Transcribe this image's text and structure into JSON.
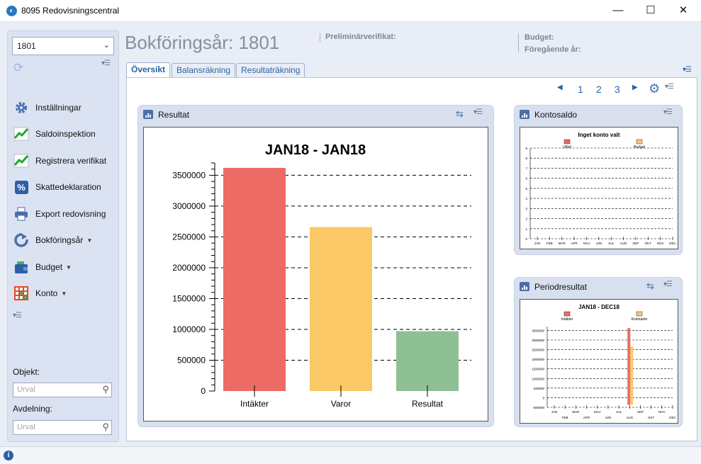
{
  "window": {
    "title": "8095 Redovisningscentral"
  },
  "sidebar": {
    "year_value": "1801",
    "items": [
      {
        "label": "Inställningar",
        "icon": "gear-icon"
      },
      {
        "label": "Saldoinspektion",
        "icon": "trend-chart-icon"
      },
      {
        "label": "Registrera verifikat",
        "icon": "trend-chart-icon"
      },
      {
        "label": "Skattedeklaration",
        "icon": "percent-icon"
      },
      {
        "label": "Export redovisning",
        "icon": "printer-icon"
      },
      {
        "label": "Bokföringsår",
        "icon": "cycle-icon"
      },
      {
        "label": "Budget",
        "icon": "wallet-icon"
      },
      {
        "label": "Konto",
        "icon": "grid-icon"
      }
    ],
    "objekt_label": "Objekt:",
    "objekt_placeholder": "Urval",
    "avdelning_label": "Avdelning:",
    "avdelning_placeholder": "Urval"
  },
  "header": {
    "title": "Bokföringsår: 1801",
    "preliminary_label": "Preliminärverifikat:",
    "budget_label": "Budget:",
    "previous_year_label": "Föregående år:"
  },
  "tabs": [
    {
      "label": "Översikt",
      "active": true
    },
    {
      "label": "Balansräkning",
      "active": false
    },
    {
      "label": "Resultaträkning",
      "active": false
    }
  ],
  "pager": {
    "pages": [
      "1",
      "2",
      "3"
    ]
  },
  "widgets": {
    "resultat": {
      "title": "Resultat"
    },
    "kontosaldo": {
      "title": "Kontosaldo"
    },
    "periodresultat": {
      "title": "Periodresultat"
    }
  },
  "chart_data": [
    {
      "type": "bar",
      "title": "JAN18 - JAN18",
      "categories": [
        "Intäkter",
        "Varor",
        "Resultat"
      ],
      "values": [
        3620000,
        2660000,
        970000
      ],
      "colors": [
        "#ec6b65",
        "#fbc868",
        "#8fbf95"
      ],
      "ylim": [
        0,
        3700000
      ],
      "yticks": [
        "0",
        "500000",
        "1000000",
        "1500000",
        "2000000",
        "2500000",
        "3000000",
        "3500000"
      ],
      "grid": true
    },
    {
      "type": "bar",
      "title": "Inget konto valt",
      "legend": [
        "Utfall",
        "Budget"
      ],
      "legend_colors": [
        "#ec6b65",
        "#fbc868"
      ],
      "yticks": [
        "0",
        "1",
        "2",
        "3",
        "4",
        "5",
        "6",
        "7",
        "8",
        "9"
      ],
      "categories": [
        "JAN",
        "FEB",
        "MAR",
        "APR",
        "MAJ",
        "JUN",
        "JUL",
        "AUG",
        "SEP",
        "OKT",
        "NOV",
        "DEC"
      ],
      "series": [
        {
          "name": "Utfall",
          "values": [
            0,
            0,
            0,
            0,
            0,
            0,
            0,
            0,
            0,
            0,
            0,
            0
          ]
        },
        {
          "name": "Budget",
          "values": [
            0,
            0,
            0,
            0,
            0,
            0,
            0,
            0,
            0,
            0,
            0,
            0
          ]
        }
      ],
      "grid": true
    },
    {
      "type": "bar",
      "title": "JAN18 - DEC18",
      "legend": [
        "Intäkter",
        "Kostnader"
      ],
      "legend_colors": [
        "#ec6b65",
        "#fbc868"
      ],
      "yticks": [
        "-500000",
        "0",
        "500000",
        "1000000",
        "1500000",
        "2000000",
        "2500000",
        "3000000",
        "3500000"
      ],
      "ylim": [
        -500000,
        3700000
      ],
      "categories": [
        "JAN",
        "FEB",
        "MAR",
        "APR",
        "MAJ",
        "JUN",
        "JUL",
        "AUG",
        "SEP",
        "OKT",
        "NOV",
        "DEC"
      ],
      "series": [
        {
          "name": "Intäkter",
          "values": [
            0,
            0,
            0,
            0,
            0,
            0,
            0,
            3620000,
            0,
            0,
            0,
            0
          ]
        },
        {
          "name": "Kostnader",
          "values": [
            0,
            0,
            0,
            0,
            0,
            0,
            0,
            2660000,
            0,
            0,
            0,
            0
          ]
        }
      ],
      "grid": true
    }
  ]
}
